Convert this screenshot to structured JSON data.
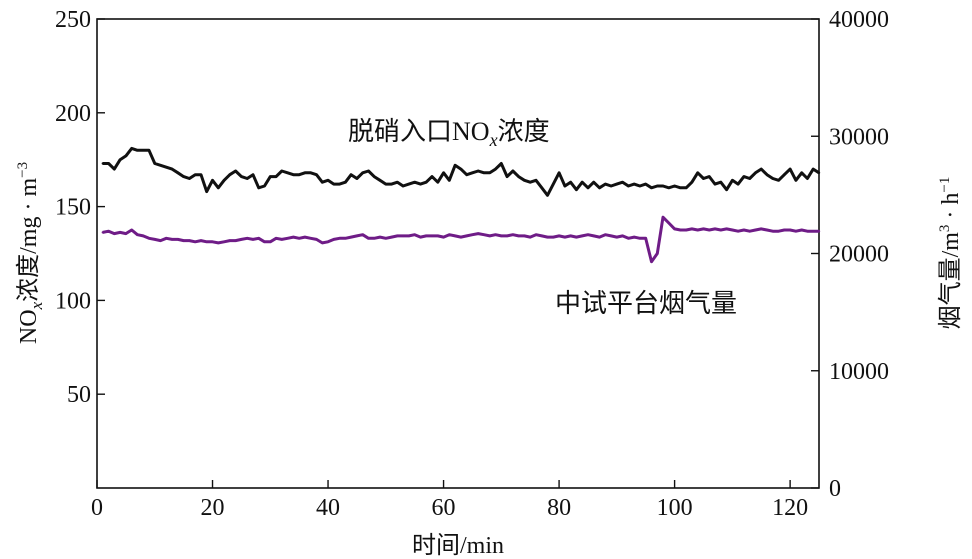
{
  "chart_data": {
    "type": "line",
    "xlabel": "时间/min",
    "ylabel_left": {
      "pre": "NO",
      "sub": "x",
      "post": "浓度/mg · m",
      "sup": "−3"
    },
    "ylabel_right": {
      "pre": "烟气量/m",
      "sup1": "3",
      "mid": " · h",
      "sup2": "−1"
    },
    "xlim": [
      0,
      125
    ],
    "ylim_left": [
      0,
      250
    ],
    "ylim_right": [
      0,
      40000
    ],
    "xticks": [
      "0",
      "20",
      "40",
      "60",
      "80",
      "100",
      "120"
    ],
    "yticks_left": [
      "50",
      "100",
      "150",
      "200",
      "250"
    ],
    "yticks_right": [
      "0",
      "10000",
      "20000",
      "30000",
      "40000"
    ],
    "grid": false,
    "series": [
      {
        "name": "脱硝入口NOx浓度",
        "label_parts": {
          "pre": "脱硝入口NO",
          "sub": "x",
          "post": "浓度"
        },
        "axis": "left",
        "color": "#111111",
        "x": [
          1,
          2,
          3,
          4,
          5,
          6,
          7,
          8,
          9,
          10,
          11,
          12,
          13,
          14,
          15,
          16,
          17,
          18,
          19,
          20,
          21,
          22,
          23,
          24,
          25,
          26,
          27,
          28,
          29,
          30,
          31,
          32,
          33,
          34,
          35,
          36,
          37,
          38,
          39,
          40,
          41,
          42,
          43,
          44,
          45,
          46,
          47,
          48,
          49,
          50,
          51,
          52,
          53,
          54,
          55,
          56,
          57,
          58,
          59,
          60,
          61,
          62,
          63,
          64,
          65,
          66,
          67,
          68,
          69,
          70,
          71,
          72,
          73,
          74,
          75,
          76,
          77,
          78,
          79,
          80,
          81,
          82,
          83,
          84,
          85,
          86,
          87,
          88,
          89,
          90,
          91,
          92,
          93,
          94,
          95,
          96,
          97,
          98,
          99,
          100,
          101,
          102,
          103,
          104,
          105,
          106,
          107,
          108,
          109,
          110,
          111,
          112,
          113,
          114,
          115,
          116,
          117,
          118,
          119,
          120,
          121,
          122,
          123,
          124,
          125
        ],
        "y": [
          173,
          173,
          170,
          175,
          177,
          181,
          180,
          180,
          180,
          173,
          172,
          171,
          170,
          168,
          166,
          165,
          167,
          167,
          158,
          164,
          160,
          164,
          167,
          169,
          166,
          165,
          167,
          160,
          161,
          166,
          166,
          169,
          168,
          167,
          167,
          168,
          168,
          167,
          163,
          164,
          162,
          162,
          163,
          167,
          165,
          168,
          169,
          166,
          164,
          162,
          162,
          163,
          161,
          162,
          163,
          162,
          163,
          166,
          163,
          168,
          164,
          172,
          170,
          167,
          168,
          169,
          168,
          168,
          170,
          173,
          166,
          169,
          166,
          164,
          163,
          164,
          160,
          156,
          162,
          168,
          161,
          163,
          159,
          163,
          160,
          163,
          160,
          162,
          161,
          162,
          163,
          161,
          162,
          161,
          162,
          160,
          161,
          161,
          160,
          161,
          160,
          160,
          163,
          168,
          165,
          166,
          162,
          163,
          159,
          164,
          162,
          166,
          165,
          168,
          170,
          167,
          165,
          164,
          167,
          170,
          164,
          168,
          165,
          170,
          168
        ]
      },
      {
        "name": "中试平台烟气量",
        "label_parts": {
          "pre": "中试平台烟气量",
          "sub": "",
          "post": ""
        },
        "axis": "right",
        "color": "#6f1c87",
        "x": [
          1,
          2,
          3,
          4,
          5,
          6,
          7,
          8,
          9,
          10,
          11,
          12,
          13,
          14,
          15,
          16,
          17,
          18,
          19,
          20,
          21,
          22,
          23,
          24,
          25,
          26,
          27,
          28,
          29,
          30,
          31,
          32,
          33,
          34,
          35,
          36,
          37,
          38,
          39,
          40,
          41,
          42,
          43,
          44,
          45,
          46,
          47,
          48,
          49,
          50,
          51,
          52,
          53,
          54,
          55,
          56,
          57,
          58,
          59,
          60,
          61,
          62,
          63,
          64,
          65,
          66,
          67,
          68,
          69,
          70,
          71,
          72,
          73,
          74,
          75,
          76,
          77,
          78,
          79,
          80,
          81,
          82,
          83,
          84,
          85,
          86,
          87,
          88,
          89,
          90,
          91,
          92,
          93,
          94,
          95,
          96,
          97,
          98,
          99,
          100,
          101,
          102,
          103,
          104,
          105,
          106,
          107,
          108,
          109,
          110,
          111,
          112,
          113,
          114,
          115,
          116,
          117,
          118,
          119,
          120,
          121,
          122,
          123,
          124,
          125
        ],
        "y": [
          21800,
          21900,
          21700,
          21800,
          21700,
          22000,
          21600,
          21500,
          21300,
          21200,
          21100,
          21300,
          21200,
          21200,
          21100,
          21100,
          21000,
          21100,
          21000,
          21000,
          20900,
          21000,
          21100,
          21100,
          21200,
          21300,
          21200,
          21300,
          21000,
          21000,
          21300,
          21200,
          21300,
          21400,
          21300,
          21400,
          21300,
          21200,
          20900,
          21000,
          21200,
          21300,
          21300,
          21400,
          21500,
          21600,
          21300,
          21300,
          21400,
          21300,
          21400,
          21500,
          21500,
          21500,
          21600,
          21400,
          21500,
          21500,
          21500,
          21400,
          21600,
          21500,
          21400,
          21500,
          21600,
          21700,
          21600,
          21500,
          21600,
          21500,
          21500,
          21600,
          21500,
          21500,
          21400,
          21600,
          21500,
          21400,
          21400,
          21500,
          21400,
          21500,
          21400,
          21500,
          21600,
          21500,
          21400,
          21600,
          21500,
          21400,
          21500,
          21300,
          21400,
          21300,
          21300,
          19300,
          20000,
          23100,
          22600,
          22100,
          22000,
          22000,
          22100,
          22000,
          22100,
          22000,
          22100,
          22000,
          22100,
          22000,
          21900,
          22000,
          21900,
          22000,
          22100,
          22000,
          21900,
          21900,
          22000,
          22000,
          21900,
          22000,
          21900,
          21900,
          21900
        ]
      }
    ]
  }
}
